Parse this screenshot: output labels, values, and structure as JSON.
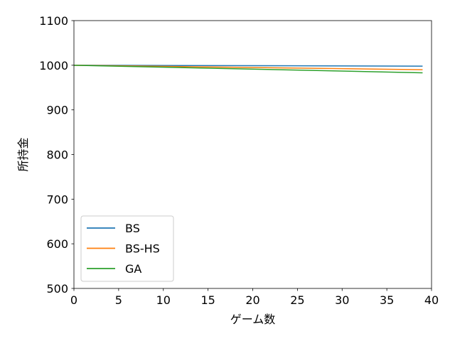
{
  "chart_data": {
    "type": "line",
    "title": "",
    "xlabel": "ゲーム数",
    "ylabel": "所持金",
    "xlim": [
      0,
      40
    ],
    "ylim": [
      500,
      1100
    ],
    "xticks": [
      0,
      5,
      10,
      15,
      20,
      25,
      30,
      35,
      40
    ],
    "yticks": [
      500,
      600,
      700,
      800,
      900,
      1000,
      1100
    ],
    "grid": false,
    "legend_position": "lower-left",
    "series": [
      {
        "name": "BS",
        "color": "#1f77b4",
        "x": [
          0,
          39
        ],
        "y": [
          1000,
          998
        ]
      },
      {
        "name": "BS-HS",
        "color": "#ff7f0e",
        "x": [
          0,
          39
        ],
        "y": [
          1000,
          990
        ]
      },
      {
        "name": "GA",
        "color": "#2ca02c",
        "x": [
          0,
          39
        ],
        "y": [
          1000,
          983
        ]
      }
    ]
  }
}
